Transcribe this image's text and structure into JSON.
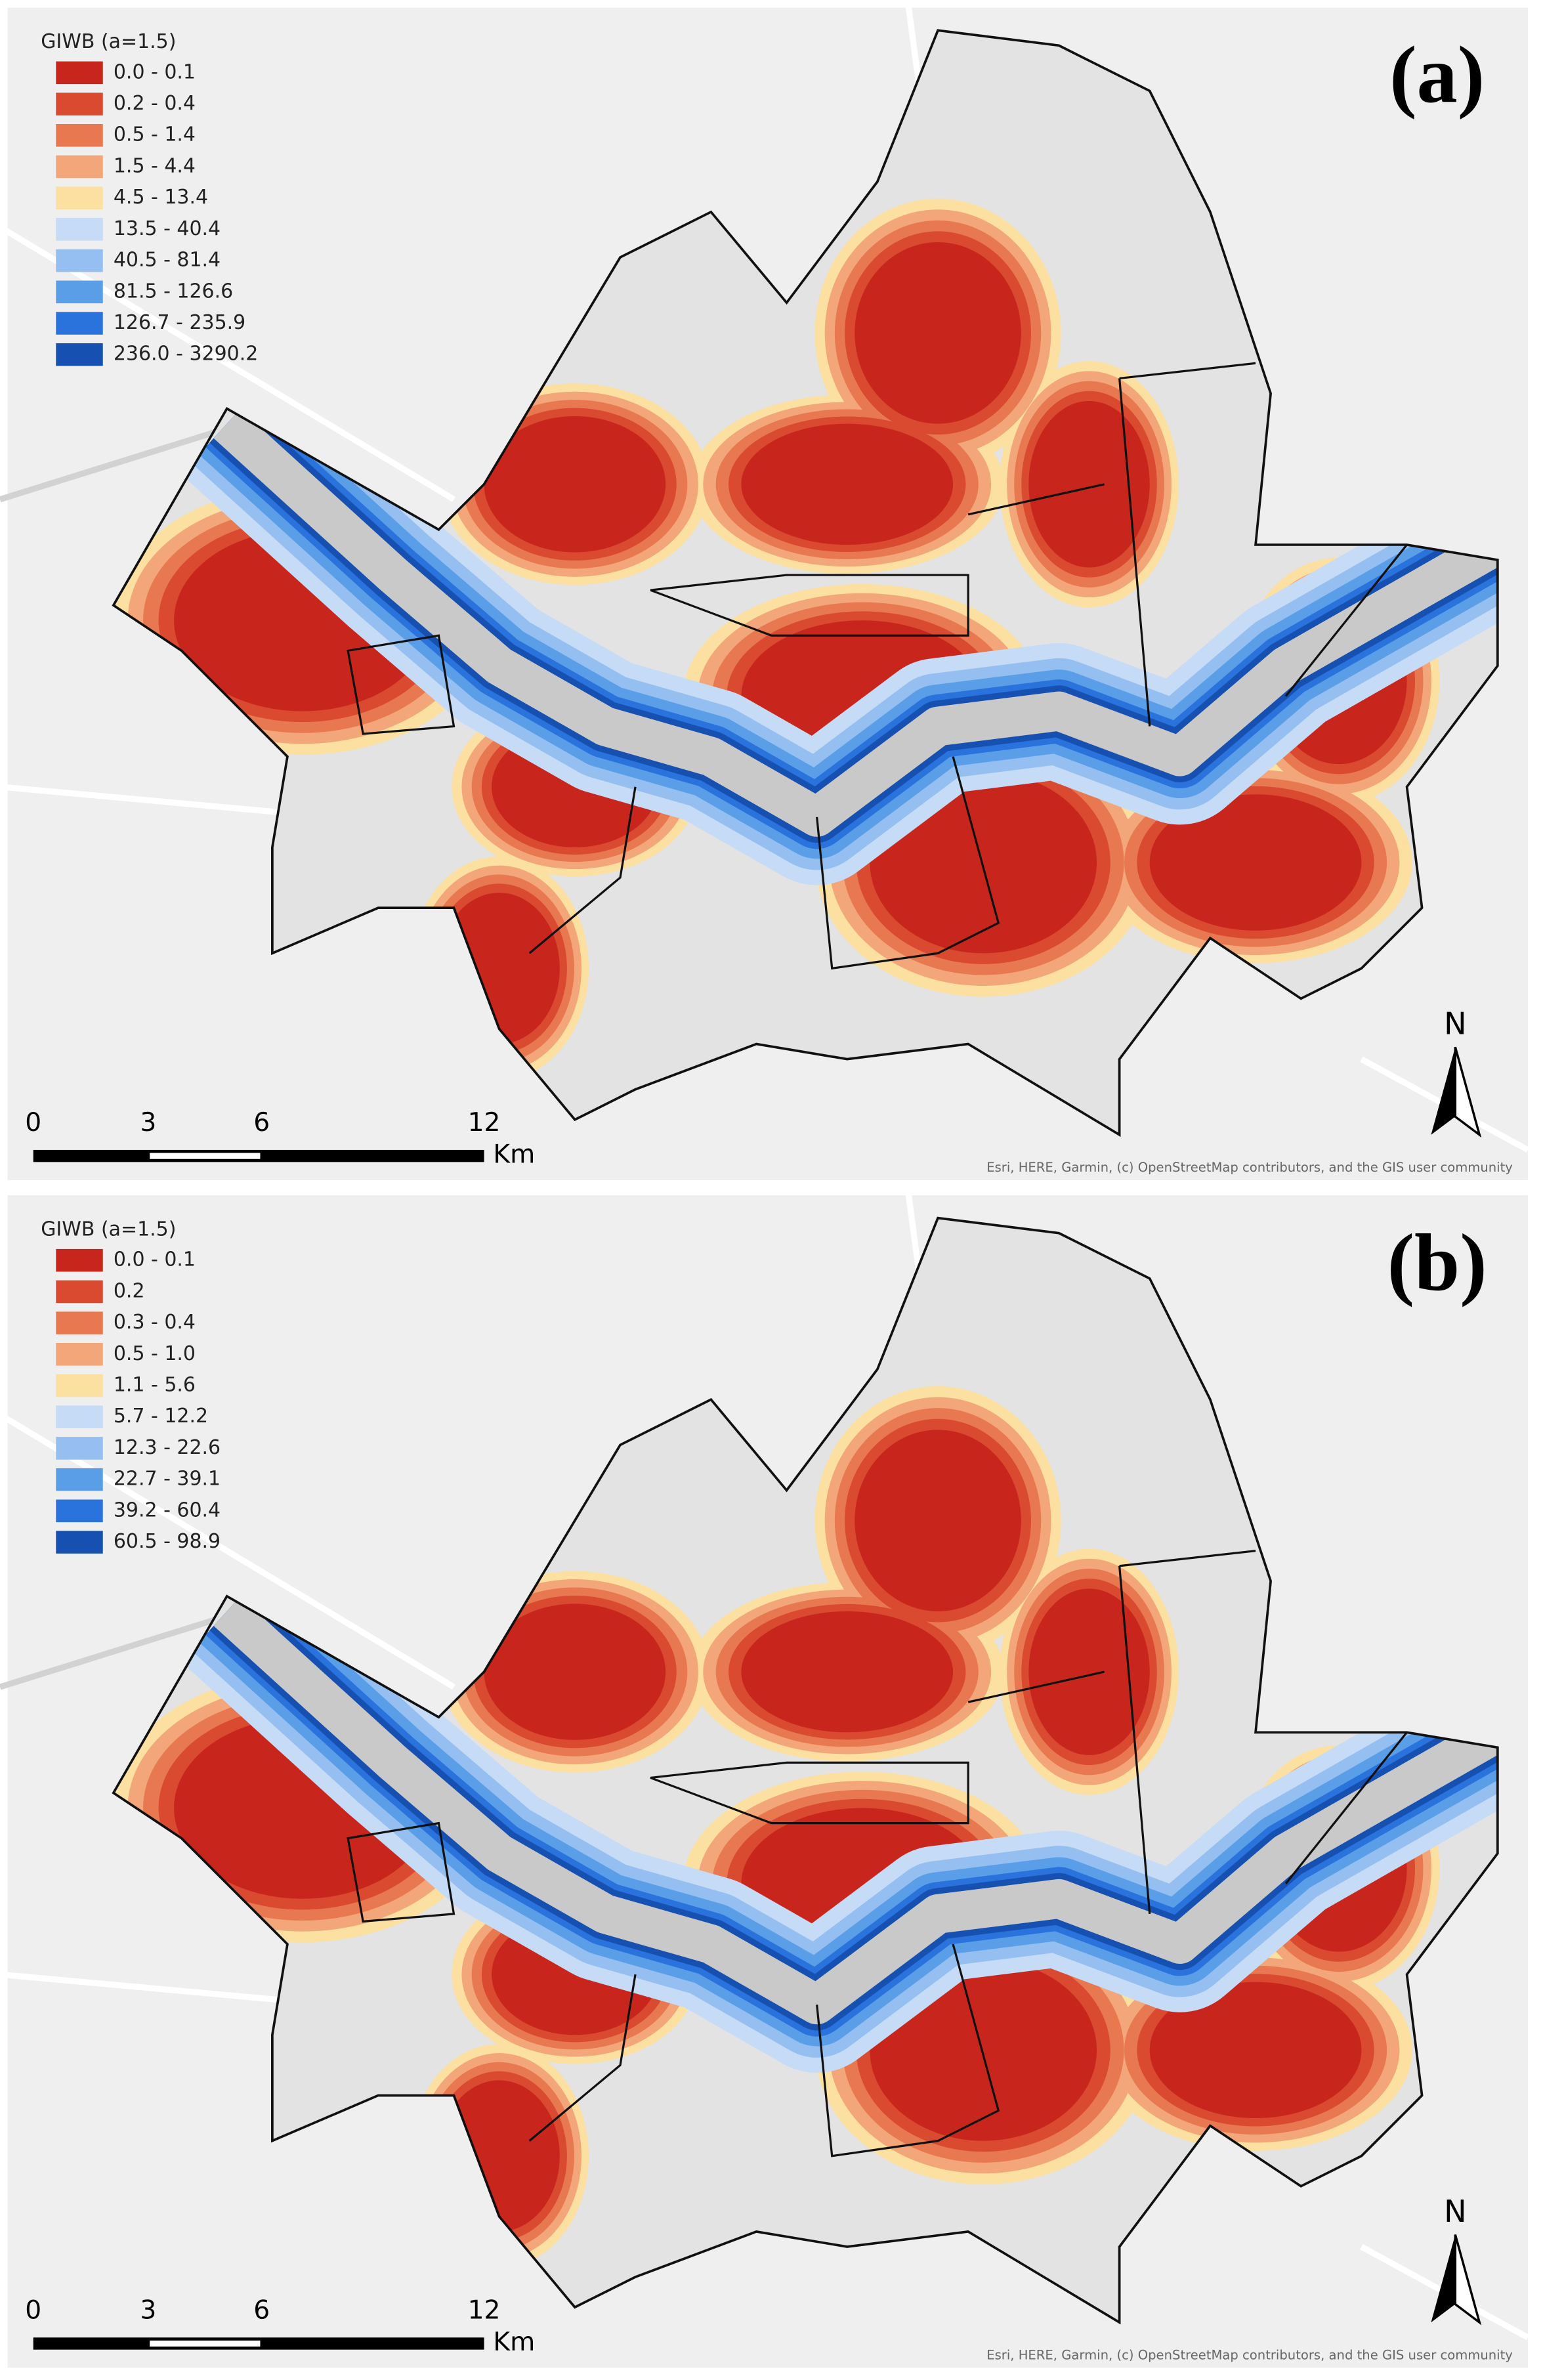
{
  "panels": [
    {
      "label": "(a)",
      "legend": {
        "title": "GIWB (a=1.5)",
        "items": [
          {
            "label": "0.0 - 0.1",
            "color": "#c8261c"
          },
          {
            "label": "0.2 - 0.4",
            "color": "#d94a30"
          },
          {
            "label": "0.5 - 1.4",
            "color": "#e8784f"
          },
          {
            "label": "1.5 - 4.4",
            "color": "#f2a679"
          },
          {
            "label": "4.5 - 13.4",
            "color": "#fbe0a1"
          },
          {
            "label": "13.5 - 40.4",
            "color": "#c6dbf5"
          },
          {
            "label": "40.5 - 81.4",
            "color": "#94bff0"
          },
          {
            "label": "81.5 - 126.6",
            "color": "#5b9ee8"
          },
          {
            "label": "126.7 - 235.9",
            "color": "#2a72dc"
          },
          {
            "label": "236.0 - 3290.2",
            "color": "#1650b0"
          }
        ]
      },
      "scale_bar": {
        "ticks": [
          "0",
          "3",
          "6",
          "12"
        ],
        "unit": "Km"
      },
      "north": "N",
      "attribution": "Esri, HERE, Garmin, (c) OpenStreetMap contributors, and the GIS user community"
    },
    {
      "label": "(b)",
      "legend": {
        "title": "GIWB (a=1.5)",
        "items": [
          {
            "label": "0.0 - 0.1",
            "color": "#c8261c"
          },
          {
            "label": "0.2",
            "color": "#d94a30"
          },
          {
            "label": "0.3 - 0.4",
            "color": "#e8784f"
          },
          {
            "label": "0.5 - 1.0",
            "color": "#f2a679"
          },
          {
            "label": "1.1 - 5.6",
            "color": "#fbe0a1"
          },
          {
            "label": "5.7 - 12.2",
            "color": "#c6dbf5"
          },
          {
            "label": "12.3 - 22.6",
            "color": "#94bff0"
          },
          {
            "label": "22.7 - 39.1",
            "color": "#5b9ee8"
          },
          {
            "label": "39.2 - 60.4",
            "color": "#2a72dc"
          },
          {
            "label": "60.5 - 98.9",
            "color": "#1650b0"
          }
        ]
      },
      "scale_bar": {
        "ticks": [
          "0",
          "3",
          "6",
          "12"
        ],
        "unit": "Km"
      },
      "north": "N",
      "attribution": "Esri, HERE, Garmin, (c) OpenStreetMap contributors, and the GIS user community"
    }
  ]
}
